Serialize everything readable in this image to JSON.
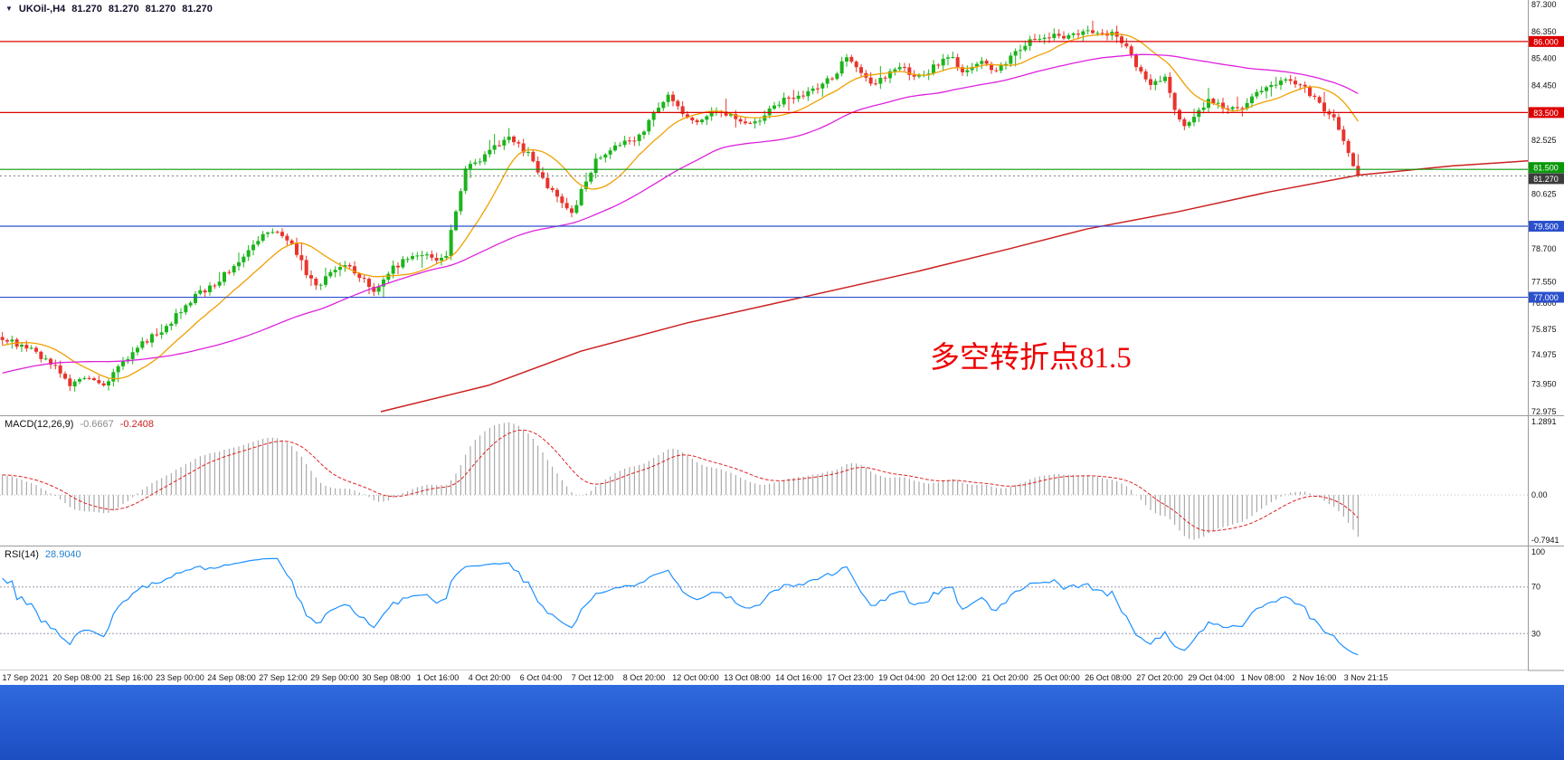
{
  "header": {
    "icon": "▼",
    "symbol": "UKOil-,H4",
    "open": "81.270",
    "high": "81.270",
    "low": "81.270",
    "close": "81.270"
  },
  "taskbar": {
    "color_top": "#2f6ade",
    "color_bottom": "#1d4dc2"
  },
  "chart_data": {
    "type": "candlestick",
    "symbol": "UKOil-",
    "timeframe": "H4",
    "bars": 282,
    "price_range": [
      72.975,
      87.3
    ],
    "current_price": 81.27,
    "annotation": {
      "text": "多空转折点81.5",
      "color": "#ee0000"
    },
    "colors": {
      "up": "#1cb41c",
      "down": "#e8342c",
      "ma_fast": "#f0a000",
      "ma_mid": "#dd22dd",
      "ma_slow": "#cc2020",
      "macd_hist": "#9a9a9a",
      "macd_signal": "#dd2222",
      "rsi": "#1e90ff",
      "current_badge": "#3c3c3c"
    },
    "y_ticks": [
      "87.300",
      "86.350",
      "85.400",
      "84.450",
      "82.525",
      "80.625",
      "78.700",
      "77.550",
      "76.800",
      "75.875",
      "74.975",
      "73.950",
      "72.975"
    ],
    "badges": [
      {
        "label": "86.000",
        "price": 86.0,
        "color": "#dd0000"
      },
      {
        "label": "83.500",
        "price": 83.5,
        "color": "#dd0000"
      },
      {
        "label": "81.500",
        "price": 81.5,
        "color": "#089908"
      },
      {
        "label": "81.270",
        "price": 81.27,
        "color": "#3c3c3c"
      },
      {
        "label": "79.500",
        "price": 79.5,
        "color": "#2b50cc"
      },
      {
        "label": "77.000",
        "price": 77.0,
        "color": "#2b50cc"
      }
    ],
    "hlines": [
      {
        "price": 86.0,
        "color": "#dd0000"
      },
      {
        "price": 83.5,
        "color": "#dd0000"
      },
      {
        "price": 81.5,
        "color": "#0a9a0a"
      },
      {
        "price": 79.5,
        "color": "#2b50cc"
      },
      {
        "price": 77.0,
        "color": "#2b50cc"
      }
    ],
    "ma_fast_period": 13,
    "ma_mid_period": 55,
    "ma_slow_points": [
      [
        0.249,
        72.975
      ],
      [
        0.32,
        73.9
      ],
      [
        0.38,
        75.1
      ],
      [
        0.45,
        76.1
      ],
      [
        0.521,
        76.95
      ],
      [
        0.6,
        77.9
      ],
      [
        0.66,
        78.7
      ],
      [
        0.711,
        79.4
      ],
      [
        0.77,
        80.0
      ],
      [
        0.83,
        80.7
      ],
      [
        0.889,
        81.3
      ],
      [
        0.95,
        81.62
      ],
      [
        1.0,
        81.8
      ]
    ],
    "close_path": [
      [
        0,
        75.55
      ],
      [
        0.02,
        75.2
      ],
      [
        0.037,
        74.6
      ],
      [
        0.05,
        73.95
      ],
      [
        0.063,
        74.25
      ],
      [
        0.074,
        73.8
      ],
      [
        0.086,
        74.55
      ],
      [
        0.1,
        75.3
      ],
      [
        0.113,
        75.7
      ],
      [
        0.123,
        76.0
      ],
      [
        0.133,
        76.65
      ],
      [
        0.143,
        77.1
      ],
      [
        0.153,
        77.35
      ],
      [
        0.17,
        78.05
      ],
      [
        0.18,
        78.55
      ],
      [
        0.19,
        79.1
      ],
      [
        0.203,
        79.33
      ],
      [
        0.214,
        78.9
      ],
      [
        0.223,
        77.95
      ],
      [
        0.233,
        77.35
      ],
      [
        0.243,
        77.9
      ],
      [
        0.256,
        78.1
      ],
      [
        0.266,
        77.6
      ],
      [
        0.274,
        77.15
      ],
      [
        0.284,
        77.9
      ],
      [
        0.296,
        78.3
      ],
      [
        0.312,
        78.5
      ],
      [
        0.326,
        78.25
      ],
      [
        0.336,
        80.3
      ],
      [
        0.342,
        81.55
      ],
      [
        0.352,
        81.8
      ],
      [
        0.364,
        82.35
      ],
      [
        0.374,
        82.65
      ],
      [
        0.389,
        82.0
      ],
      [
        0.399,
        81.1
      ],
      [
        0.409,
        80.5
      ],
      [
        0.42,
        79.9
      ],
      [
        0.429,
        80.95
      ],
      [
        0.437,
        81.75
      ],
      [
        0.447,
        82.2
      ],
      [
        0.459,
        82.5
      ],
      [
        0.472,
        82.7
      ],
      [
        0.482,
        83.65
      ],
      [
        0.49,
        84.1
      ],
      [
        0.502,
        83.5
      ],
      [
        0.512,
        83.15
      ],
      [
        0.525,
        83.5
      ],
      [
        0.54,
        83.4
      ],
      [
        0.552,
        83.0
      ],
      [
        0.564,
        83.55
      ],
      [
        0.575,
        83.9
      ],
      [
        0.588,
        84.1
      ],
      [
        0.601,
        84.35
      ],
      [
        0.613,
        84.75
      ],
      [
        0.623,
        85.55
      ],
      [
        0.632,
        85.05
      ],
      [
        0.641,
        84.55
      ],
      [
        0.652,
        84.75
      ],
      [
        0.664,
        85.15
      ],
      [
        0.674,
        84.65
      ],
      [
        0.686,
        85.05
      ],
      [
        0.698,
        85.5
      ],
      [
        0.71,
        84.9
      ],
      [
        0.721,
        85.3
      ],
      [
        0.734,
        85.0
      ],
      [
        0.745,
        85.55
      ],
      [
        0.757,
        85.95
      ],
      [
        0.77,
        86.25
      ],
      [
        0.784,
        86.1
      ],
      [
        0.797,
        86.35
      ],
      [
        0.81,
        86.2
      ],
      [
        0.82,
        86.35
      ],
      [
        0.83,
        85.7
      ],
      [
        0.838,
        85.05
      ],
      [
        0.847,
        84.45
      ],
      [
        0.857,
        84.75
      ],
      [
        0.865,
        83.65
      ],
      [
        0.871,
        83.0
      ],
      [
        0.88,
        83.5
      ],
      [
        0.89,
        83.9
      ],
      [
        0.902,
        83.7
      ],
      [
        0.913,
        83.6
      ],
      [
        0.923,
        84.1
      ],
      [
        0.933,
        84.45
      ],
      [
        0.943,
        84.6
      ],
      [
        0.957,
        84.45
      ],
      [
        0.967,
        84.1
      ],
      [
        0.975,
        83.65
      ],
      [
        0.982,
        83.3
      ],
      [
        0.99,
        82.5
      ],
      [
        0.995,
        81.75
      ],
      [
        1.0,
        81.27
      ]
    ],
    "x_labels": [
      "17 Sep 2021",
      "20 Sep 08:00",
      "21 Sep 16:00",
      "23 Sep 00:00",
      "24 Sep 08:00",
      "27 Sep 12:00",
      "29 Sep 00:00",
      "30 Sep 08:00",
      "1 Oct 16:00",
      "4 Oct 20:00",
      "6 Oct 04:00",
      "7 Oct 12:00",
      "8 Oct 20:00",
      "12 Oct 00:00",
      "13 Oct 08:00",
      "14 Oct 16:00",
      "17 Oct 23:00",
      "19 Oct 04:00",
      "20 Oct 12:00",
      "21 Oct 20:00",
      "25 Oct 00:00",
      "26 Oct 08:00",
      "27 Oct 20:00",
      "29 Oct 04:00",
      "1 Nov 08:00",
      "2 Nov 16:00",
      "3 Nov 21:15"
    ],
    "macd": {
      "name": "MACD(12,26,9)",
      "main_value": "-0.6667",
      "signal_value": "-0.2408",
      "fast": 12,
      "slow": 26,
      "signal": 9,
      "range": [
        -0.7941,
        1.2891
      ],
      "ticks": [
        {
          "label": "1.2891",
          "value": 1.2891
        },
        {
          "label": "0.00",
          "value": 0
        },
        {
          "label": "-0.7941",
          "value": -0.7941
        }
      ]
    },
    "rsi": {
      "name": "RSI(14)",
      "value": "28.9040",
      "period": 14,
      "levels": [
        70,
        30
      ],
      "ticks": [
        {
          "label": "100",
          "value": 100
        },
        {
          "label": "70",
          "value": 70
        },
        {
          "label": "30",
          "value": 30
        }
      ]
    }
  }
}
